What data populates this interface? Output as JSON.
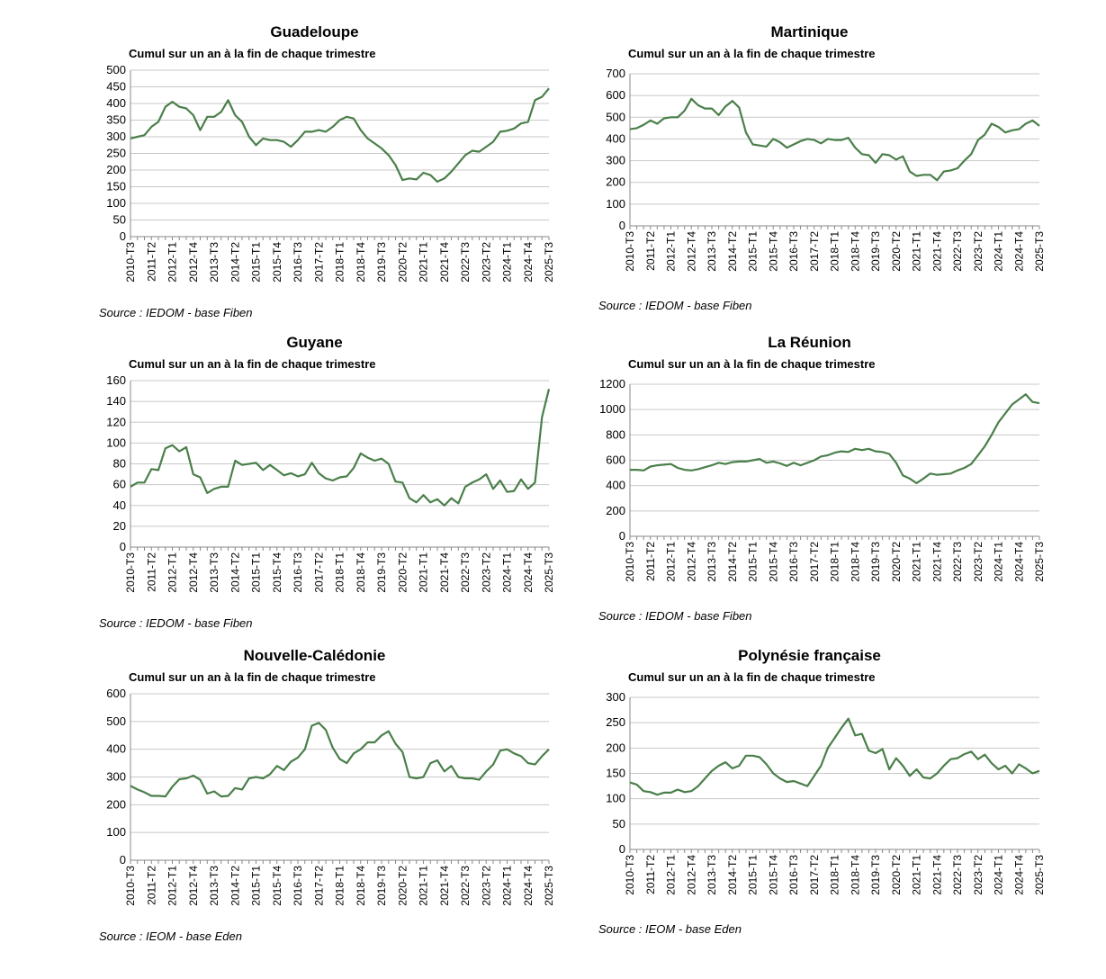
{
  "chart_data": [
    {
      "type": "line",
      "title": "Guadeloupe",
      "subtitle": "Cumul sur un an à la fin de chaque trimestre",
      "source": "Source : IEDOM - base Fiben",
      "categories": [
        "2010-T3",
        null,
        null,
        "2011-T2",
        null,
        null,
        "2012-T1",
        null,
        null,
        "2012-T4",
        null,
        null,
        "2013-T3",
        null,
        null,
        "2014-T2",
        null,
        null,
        "2015-T1",
        null,
        null,
        "2015-T4",
        null,
        null,
        "2016-T3",
        null,
        null,
        "2017-T2",
        null,
        null,
        "2018-T1",
        null,
        null,
        "2018-T4",
        null,
        null,
        "2019-T3",
        null,
        null,
        "2020-T2",
        null,
        null,
        "2021-T1",
        null,
        null,
        "2021-T4",
        null,
        null,
        "2022-T3",
        null,
        null,
        "2023-T2",
        null,
        null,
        "2024-T1",
        null,
        null,
        "2024-T4",
        null,
        null,
        "2025-T3"
      ],
      "values": [
        295,
        300,
        305,
        330,
        345,
        390,
        405,
        390,
        385,
        365,
        320,
        360,
        360,
        375,
        410,
        365,
        345,
        300,
        275,
        295,
        290,
        290,
        285,
        270,
        290,
        315,
        315,
        320,
        315,
        330,
        350,
        360,
        355,
        320,
        295,
        280,
        265,
        245,
        215,
        170,
        175,
        172,
        192,
        185,
        165,
        175,
        195,
        220,
        245,
        258,
        255,
        270,
        285,
        315,
        318,
        325,
        340,
        345,
        410,
        420,
        445
      ],
      "color": "#4a7f4a",
      "ylim": [
        0,
        500
      ],
      "yticks": [
        0,
        50,
        100,
        150,
        200,
        250,
        300,
        350,
        400,
        450,
        500
      ],
      "grid": true
    },
    {
      "type": "line",
      "title": "Martinique",
      "subtitle": "Cumul sur un an à la fin de chaque trimestre",
      "source": "Source : IEDOM - base Fiben",
      "categories": [
        "2010-T3",
        null,
        null,
        "2011-T2",
        null,
        null,
        "2012-T1",
        null,
        null,
        "2012-T4",
        null,
        null,
        "2013-T3",
        null,
        null,
        "2014-T2",
        null,
        null,
        "2015-T1",
        null,
        null,
        "2015-T4",
        null,
        null,
        "2016-T3",
        null,
        null,
        "2017-T2",
        null,
        null,
        "2018-T1",
        null,
        null,
        "2018-T4",
        null,
        null,
        "2019-T3",
        null,
        null,
        "2020-T2",
        null,
        null,
        "2021-T1",
        null,
        null,
        "2021-T4",
        null,
        null,
        "2022-T3",
        null,
        null,
        "2023-T2",
        null,
        null,
        "2024-T1",
        null,
        null,
        "2024-T4",
        null,
        null,
        "2025-T3"
      ],
      "values": [
        445,
        450,
        465,
        485,
        470,
        495,
        500,
        500,
        530,
        585,
        555,
        540,
        540,
        510,
        550,
        575,
        545,
        430,
        375,
        370,
        365,
        400,
        385,
        360,
        375,
        390,
        400,
        395,
        380,
        400,
        395,
        395,
        405,
        360,
        330,
        325,
        290,
        330,
        325,
        305,
        320,
        250,
        230,
        235,
        235,
        210,
        250,
        255,
        265,
        300,
        330,
        395,
        420,
        470,
        455,
        430,
        440,
        445,
        470,
        485,
        460
      ],
      "color": "#4a7f4a",
      "ylim": [
        0,
        700
      ],
      "yticks": [
        0,
        100,
        200,
        300,
        400,
        500,
        600,
        700
      ],
      "grid": true
    },
    {
      "type": "line",
      "title": "Guyane",
      "subtitle": "Cumul sur un an à la fin de chaque trimestre",
      "source": "Source : IEDOM - base Fiben",
      "categories": [
        "2010-T3",
        null,
        null,
        "2011-T2",
        null,
        null,
        "2012-T1",
        null,
        null,
        "2012-T4",
        null,
        null,
        "2013-T3",
        null,
        null,
        "2014-T2",
        null,
        null,
        "2015-T1",
        null,
        null,
        "2015-T4",
        null,
        null,
        "2016-T3",
        null,
        null,
        "2017-T2",
        null,
        null,
        "2018-T1",
        null,
        null,
        "2018-T4",
        null,
        null,
        "2019-T3",
        null,
        null,
        "2020-T2",
        null,
        null,
        "2021-T1",
        null,
        null,
        "2021-T4",
        null,
        null,
        "2022-T3",
        null,
        null,
        "2023-T2",
        null,
        null,
        "2024-T1",
        null,
        null,
        "2024-T4",
        null,
        null,
        "2025-T3"
      ],
      "values": [
        58,
        62,
        62,
        75,
        74,
        95,
        98,
        92,
        96,
        70,
        67,
        52,
        56,
        58,
        58,
        83,
        79,
        80,
        81,
        74,
        79,
        74,
        69,
        71,
        68,
        70,
        81,
        71,
        66,
        64,
        67,
        68,
        76,
        90,
        86,
        83,
        85,
        80,
        63,
        62,
        47,
        43,
        50,
        43,
        46,
        40,
        47,
        42,
        58,
        62,
        65,
        70,
        56,
        64,
        53,
        54,
        65,
        56,
        62,
        125,
        152
      ],
      "color": "#4a7f4a",
      "ylim": [
        0,
        160
      ],
      "yticks": [
        0,
        20,
        40,
        60,
        80,
        100,
        120,
        140,
        160
      ],
      "grid": true
    },
    {
      "type": "line",
      "title": "La Réunion",
      "subtitle": "Cumul sur un an à la fin de chaque trimestre",
      "source": "Source : IEDOM - base Fiben",
      "categories": [
        "2010-T3",
        null,
        null,
        "2011-T2",
        null,
        null,
        "2012-T1",
        null,
        null,
        "2012-T4",
        null,
        null,
        "2013-T3",
        null,
        null,
        "2014-T2",
        null,
        null,
        "2015-T1",
        null,
        null,
        "2015-T4",
        null,
        null,
        "2016-T3",
        null,
        null,
        "2017-T2",
        null,
        null,
        "2018-T1",
        null,
        null,
        "2018-T4",
        null,
        null,
        "2019-T3",
        null,
        null,
        "2020-T2",
        null,
        null,
        "2021-T1",
        null,
        null,
        "2021-T4",
        null,
        null,
        "2022-T3",
        null,
        null,
        "2023-T2",
        null,
        null,
        "2024-T1",
        null,
        null,
        "2024-T4",
        null,
        null,
        "2025-T3"
      ],
      "values": [
        525,
        525,
        520,
        550,
        560,
        565,
        570,
        540,
        525,
        520,
        530,
        545,
        560,
        580,
        570,
        585,
        590,
        590,
        600,
        610,
        580,
        590,
        575,
        555,
        580,
        560,
        580,
        600,
        630,
        640,
        660,
        670,
        665,
        690,
        680,
        690,
        670,
        665,
        650,
        580,
        480,
        455,
        420,
        455,
        495,
        485,
        490,
        495,
        520,
        540,
        570,
        640,
        710,
        800,
        900,
        970,
        1040,
        1080,
        1120,
        1060,
        1050
      ],
      "color": "#4a7f4a",
      "ylim": [
        0,
        1200
      ],
      "yticks": [
        0,
        200,
        400,
        600,
        800,
        1000,
        1200
      ],
      "grid": true
    },
    {
      "type": "line",
      "title": "Nouvelle-Calédonie",
      "subtitle": "Cumul sur un an à la fin de chaque trimestre",
      "source": "Source : IEOM - base Eden",
      "categories": [
        "2010-T3",
        null,
        null,
        "2011-T2",
        null,
        null,
        "2012-T1",
        null,
        null,
        "2012-T4",
        null,
        null,
        "2013-T3",
        null,
        null,
        "2014-T2",
        null,
        null,
        "2015-T1",
        null,
        null,
        "2015-T4",
        null,
        null,
        "2016-T3",
        null,
        null,
        "2017-T2",
        null,
        null,
        "2018-T1",
        null,
        null,
        "2018-T4",
        null,
        null,
        "2019-T3",
        null,
        null,
        "2020-T2",
        null,
        null,
        "2021-T1",
        null,
        null,
        "2021-T4",
        null,
        null,
        "2022-T3",
        null,
        null,
        "2023-T2",
        null,
        null,
        "2024-T1",
        null,
        null,
        "2024-T4",
        null,
        null,
        "2025-T3"
      ],
      "values": [
        268,
        255,
        245,
        232,
        232,
        230,
        265,
        292,
        295,
        305,
        290,
        240,
        248,
        230,
        232,
        260,
        255,
        295,
        300,
        295,
        310,
        340,
        325,
        355,
        370,
        400,
        485,
        495,
        470,
        405,
        365,
        350,
        385,
        400,
        425,
        425,
        450,
        465,
        420,
        390,
        300,
        295,
        300,
        350,
        360,
        320,
        340,
        300,
        295,
        295,
        290,
        320,
        345,
        395,
        400,
        385,
        375,
        350,
        345,
        375,
        400
      ],
      "color": "#4a7f4a",
      "ylim": [
        0,
        600
      ],
      "yticks": [
        0,
        100,
        200,
        300,
        400,
        500,
        600
      ],
      "grid": true
    },
    {
      "type": "line",
      "title": "Polynésie française",
      "subtitle": "Cumul sur un an à la fin de chaque trimestre",
      "source": "Source : IEOM - base Eden",
      "categories": [
        "2010-T3",
        null,
        null,
        "2011-T2",
        null,
        null,
        "2012-T1",
        null,
        null,
        "2012-T4",
        null,
        null,
        "2013-T3",
        null,
        null,
        "2014-T2",
        null,
        null,
        "2015-T1",
        null,
        null,
        "2015-T4",
        null,
        null,
        "2016-T3",
        null,
        null,
        "2017-T2",
        null,
        null,
        "2018-T1",
        null,
        null,
        "2018-T4",
        null,
        null,
        "2019-T3",
        null,
        null,
        "2020-T2",
        null,
        null,
        "2021-T1",
        null,
        null,
        "2021-T4",
        null,
        null,
        "2022-T3",
        null,
        null,
        "2023-T2",
        null,
        null,
        "2024-T1",
        null,
        null,
        "2024-T4",
        null,
        null,
        "2025-T3"
      ],
      "values": [
        132,
        128,
        115,
        113,
        108,
        112,
        112,
        118,
        113,
        115,
        125,
        140,
        155,
        165,
        172,
        160,
        165,
        185,
        185,
        182,
        168,
        150,
        140,
        133,
        135,
        130,
        125,
        145,
        165,
        200,
        220,
        240,
        258,
        225,
        228,
        195,
        190,
        198,
        158,
        180,
        165,
        145,
        158,
        142,
        140,
        150,
        165,
        178,
        180,
        188,
        193,
        178,
        187,
        170,
        158,
        165,
        150,
        168,
        160,
        150,
        155
      ],
      "color": "#4a7f4a",
      "ylim": [
        0,
        300
      ],
      "yticks": [
        0,
        50,
        100,
        150,
        200,
        250,
        300
      ],
      "grid": true
    }
  ]
}
